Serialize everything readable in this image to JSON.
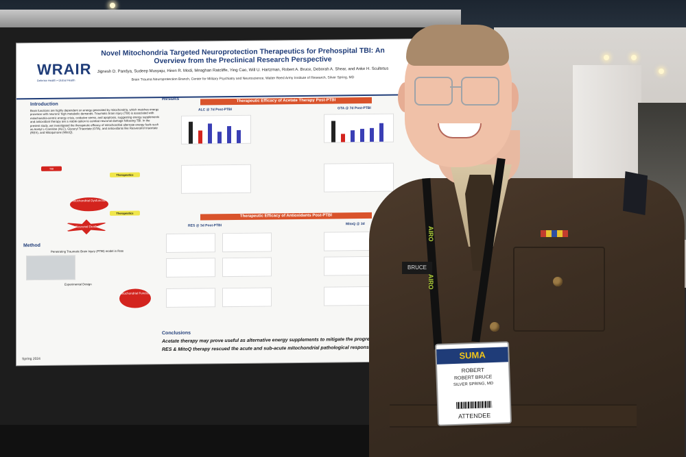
{
  "poster": {
    "logo": "WRAIR",
    "logo_sub": "Defense Health • Global Health",
    "title": "Novel Mitochondria Targeted Neuroprotection Therapeutics for Prehospital TBI: An Overview from the Preclinical Research Perspective",
    "authors": "Jignesh D. Pandya, Sudeep Musyaju, Hiren R. Modi, Meaghan Ratcliffe, Ying Cao, Will U. Hartzman, Robert A. Bruce, Deborah A. Shear, and Anke H. Scultetus",
    "affiliation": "Brain Trauma Neuroprotection Branch, Center for Military Psychiatry and Neuroscience, Walter Reed Army Institute of Research, Silver Spring, MD",
    "intro_heading": "Introduction",
    "intro_text": "Brain functions are highly dependent on energy generated by mitochondria, which matches energy provision with neurons' high metabolic demands. Traumatic brain injury (TBI) is associated with mitochondria-centric energy crisis, oxidative stress, and apoptosis, suggesting energy supplements and antioxidant therapy are a viable option to combat neuronal damage following TBI. In the present study, we investigated the therapeutic efficacy of mitochondrial alternate energy fuels such as Acetyl L-Carnitine (ALC), Glyceryl Triacetate (GTA), and antioxidants like Resveratrol triacetate (RES), and Mitoquinone (MitoQ).",
    "flow": {
      "tbi": "TBI",
      "therapeutics": "Therapeutics",
      "mito": "Mitochondrial Dysfunction",
      "death": "Neuronal Death"
    },
    "method_heading": "Method",
    "method_sub": "Penetrating Traumatic Brain Injury (PTBI) model in Rats",
    "experimental_design": "Experimental Design",
    "mito_function": "Mitochondrial Function",
    "results_heading": "Results",
    "bar1": "Therapeutic Efficacy of Acetate Therapy Post-PTBI",
    "bar2": "Therapeutic Efficacy of Antioxidants Post-PTBI",
    "charts": {
      "alc": "ALC @ 7d Post-PTBI",
      "gta": "GTA @ 7d Post-PTBI",
      "res": "RES @ 3d Post-PTBI",
      "mitoq": "MitoQ @ 3d"
    },
    "conclusions_heading": "Conclusions",
    "conclusion_1": "Acetate therapy may prove useful as alternative energy supplements to mitigate the progressi",
    "conclusion_2": "RES & MitoQ therapy rescued the acute and sub-acute mitochondrial pathological responses",
    "season": "Spring 2024"
  },
  "badge": {
    "event": "SUMA",
    "first": "ROBERT",
    "full": "ROBERT BRUCE",
    "location": "SILVER SPRING, MD",
    "role": "ATTENDEE"
  },
  "uniform": {
    "nametag": "BRUCE",
    "lanyard": "AIRO"
  },
  "chart_values": {
    "alc": [
      0.95,
      0.55,
      0.85,
      0.5,
      0.75,
      0.55
    ],
    "gta": [
      0.9,
      0.35,
      0.5,
      0.55,
      0.6,
      0.8
    ]
  }
}
